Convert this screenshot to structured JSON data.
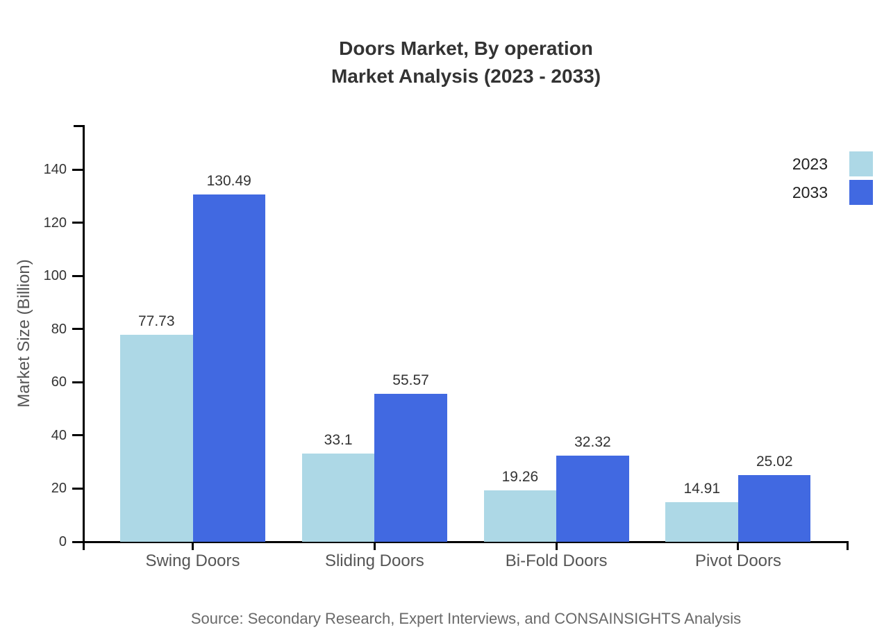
{
  "chart_data": {
    "type": "bar",
    "title_line1": "Doors Market, By operation",
    "title_line2": "Market Analysis (2023 - 2033)",
    "ylabel": "Market Size (Billion)",
    "xlabel": "",
    "categories": [
      "Swing Doors",
      "Sliding Doors",
      "Bi-Fold Doors",
      "Pivot Doors"
    ],
    "series": [
      {
        "name": "2023",
        "color": "#ADD8E6",
        "values": [
          77.73,
          33.1,
          19.26,
          14.91
        ]
      },
      {
        "name": "2033",
        "color": "#4169E1",
        "values": [
          130.49,
          55.57,
          32.32,
          25.02
        ]
      }
    ],
    "yticks": [
      0,
      20,
      40,
      60,
      80,
      100,
      120,
      140
    ],
    "ylim": [
      0,
      156
    ],
    "grid": false,
    "legend_position": "top-right",
    "value_labels_shown": true,
    "source": "Source: Secondary Research, Expert Interviews, and CONSAINSIGHTS Analysis"
  },
  "colors": {
    "axis": "#000000",
    "title_text": "#333333",
    "tick_text": "#333333",
    "category_text": "#555555",
    "axis_label_text": "#555555",
    "source_text": "#696969",
    "background": "#ffffff"
  }
}
